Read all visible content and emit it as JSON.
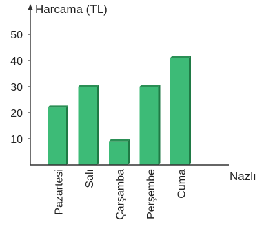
{
  "chart_data": {
    "type": "bar",
    "title": "",
    "ylabel": "Harcama (TL)",
    "xlabel": "Nazlı",
    "categories": [
      "Pazartesi",
      "Salı",
      "Çarşamba",
      "Perşembe",
      "Cuma"
    ],
    "values": [
      22,
      30,
      9,
      30,
      41
    ],
    "ylim": [
      0,
      55
    ],
    "yticks": [
      10,
      20,
      30,
      40,
      50
    ],
    "grid": false,
    "bar_color": "#3dbb77",
    "bar_side_color": "#1f7a45",
    "bar_top_color": "#2a8f55"
  }
}
